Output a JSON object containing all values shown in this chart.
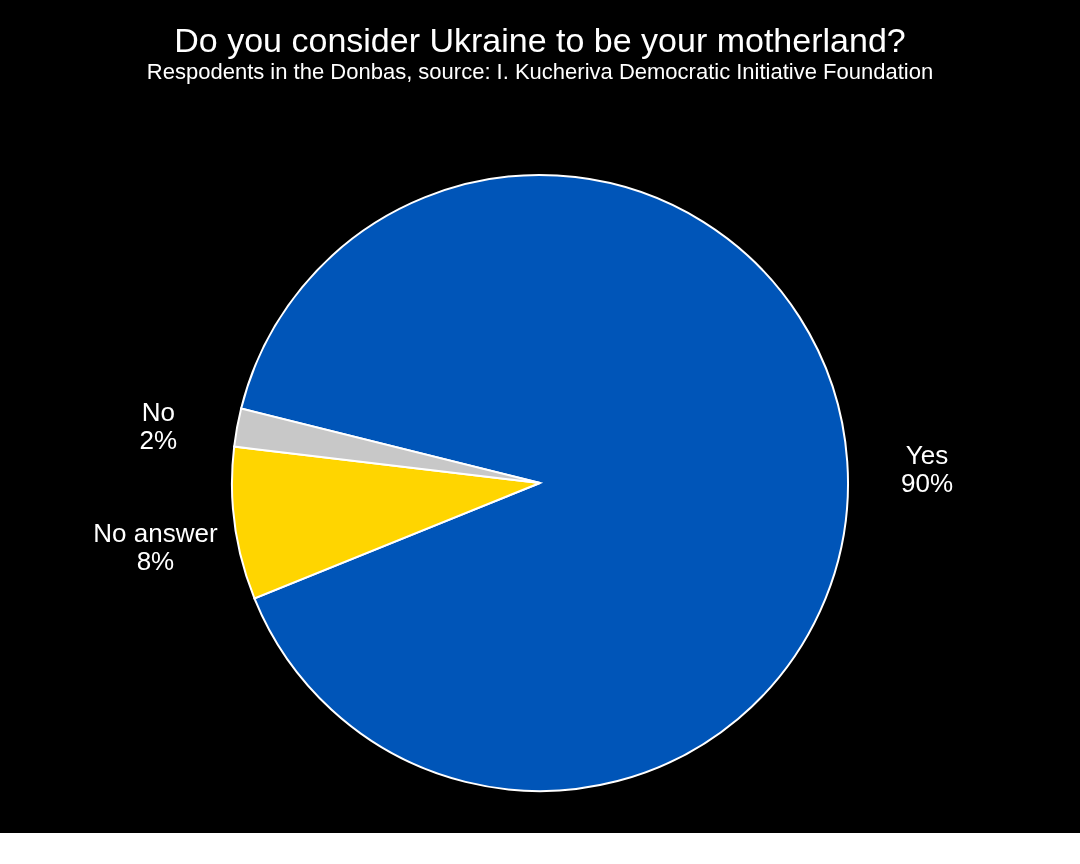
{
  "chart_data": {
    "type": "pie",
    "title": "Do you consider Ukraine to be your motherland?",
    "subtitle": "Respodents in the Donbas, source: I. Kucheriva Democratic Initiative Foundation",
    "categories": [
      "Yes",
      "No answer",
      "No"
    ],
    "values": [
      90,
      8,
      2
    ],
    "value_labels": [
      "90%",
      "8%",
      "2%"
    ],
    "colors": [
      "#0055b8",
      "#ffd500",
      "#c8c8c8"
    ],
    "legend": false
  }
}
